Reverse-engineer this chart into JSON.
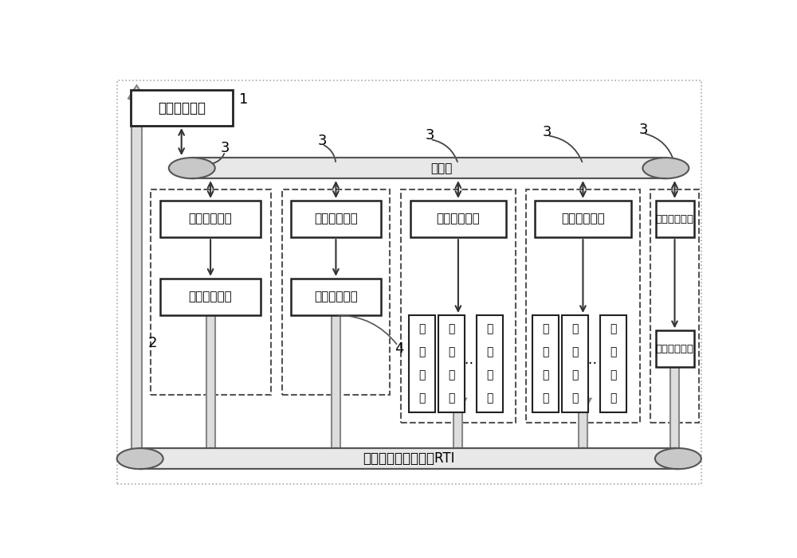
{
  "bg_color": "#ffffff",
  "lan_label": "局域网",
  "rti_label": "分布式仿真支持平台RTI",
  "exp_ctrl_label": "实验控制模块",
  "cmd_proc_label": "指令处理模块",
  "data_collect_label": "数据采集模块",
  "data_proc_label": "数据处理模块",
  "sim_model_label": "仿真模型",
  "online_stat_label": "在线统计模块",
  "label_1": "1",
  "label_2": "2",
  "label_3": "3",
  "label_4": "4",
  "dots": "..."
}
